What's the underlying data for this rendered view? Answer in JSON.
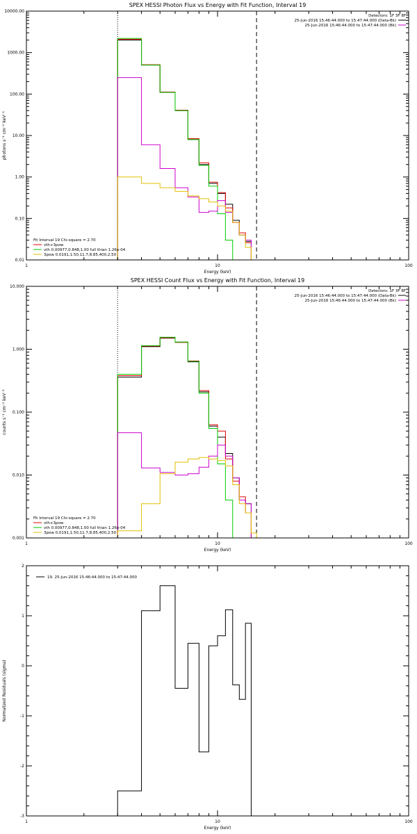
{
  "chart_data": [
    {
      "type": "line",
      "title": "SPEX HESSI Photon Flux vs Energy with Fit Function, Interval 19",
      "xlabel": "Energy (keV)",
      "ylabel": "photons s⁻¹ cm⁻² keV⁻¹",
      "xscale": "log",
      "yscale": "log",
      "xlim": [
        1,
        100
      ],
      "ylim": [
        0.01,
        10000
      ],
      "xticks": [
        {
          "v": 1,
          "label": "1"
        },
        {
          "v": 10,
          "label": "10"
        },
        {
          "v": 100,
          "label": "100"
        }
      ],
      "yticks": [
        {
          "v": 0.01,
          "label": "0.01"
        },
        {
          "v": 0.1,
          "label": "0.10"
        },
        {
          "v": 1,
          "label": "1.00"
        },
        {
          "v": 10,
          "label": "10.00"
        },
        {
          "v": 100,
          "label": "100.00"
        },
        {
          "v": 1000,
          "label": "1000.00"
        },
        {
          "v": 10000,
          "label": "10000.00"
        }
      ],
      "vlines": [
        {
          "x": 3.0,
          "style": "dotted"
        },
        {
          "x": 16.0,
          "style": "dashed"
        }
      ],
      "edges": [
        3.0,
        4.0,
        5.0,
        6.0,
        7.0,
        8.0,
        9.0,
        10.0,
        11.0,
        12.0,
        13.0,
        14.0,
        15.0,
        16.0,
        17.5
      ],
      "series": [
        {
          "color": "#000000",
          "values": [
            2000,
            500,
            110,
            40,
            8,
            2,
            0.7,
            0.4,
            0.22,
            0.09,
            0.04,
            0.028,
            null,
            null
          ]
        },
        {
          "color": "#e00000",
          "values": [
            2100,
            510,
            112,
            41,
            8.4,
            2.2,
            0.75,
            0.42,
            0.18,
            0.08,
            0.045,
            0.026,
            null,
            null
          ]
        },
        {
          "color": "#00cc00",
          "values": [
            2200,
            500,
            110,
            40,
            8,
            1.9,
            0.6,
            0.13,
            0.03,
            0.01,
            0.01,
            0.01,
            null,
            null
          ]
        },
        {
          "color": "#cc00cc",
          "values": [
            250,
            6,
            1.6,
            0.55,
            0.33,
            0.14,
            0.15,
            0.27,
            0.14,
            0.08,
            0.04,
            0.03,
            null,
            null
          ]
        },
        {
          "color": "#e0c000",
          "values": [
            1.0,
            0.7,
            0.55,
            0.45,
            0.35,
            0.3,
            0.25,
            0.2,
            0.15,
            0.08,
            0.04,
            0.02,
            0.01,
            null
          ]
        }
      ],
      "legend": {
        "placement": "bottom-left",
        "entries": [
          {
            "text": "Fit Interval 19   Chi-square = 2.70",
            "color": null
          },
          {
            "text": "vth+3pow",
            "color": "#e00000"
          },
          {
            "text": "vth 0.00977,0.848,1.00  full thian 1.26e-04",
            "color": "#00cc00"
          },
          {
            "text": "3pow 0.0191,1.50,11.7,8.85,400,2.50",
            "color": "#e0c000"
          }
        ]
      },
      "detector_text": {
        "lines": [
          {
            "text": "Detectors: 1F 3F 8F",
            "color": null
          },
          {
            "text": "25-Jun-2016 15:46:44.000 to 15:47:44.000 (Data-Bk)",
            "color": "#000000"
          },
          {
            "text": "25-Jun-2016 15:46:44.000 to 15:47:44.000 (Bk)",
            "color": "#cc00cc"
          }
        ]
      }
    },
    {
      "type": "line",
      "title": "SPEX HESSI Count Flux vs Energy with Fit Function, Interval 19",
      "xlabel": "Energy (keV)",
      "ylabel": "counts s⁻¹ cm⁻² keV⁻¹",
      "xscale": "log",
      "yscale": "log",
      "xlim": [
        1,
        100
      ],
      "ylim": [
        0.001,
        10
      ],
      "xticks": [
        {
          "v": 1,
          "label": "1"
        },
        {
          "v": 10,
          "label": "10"
        },
        {
          "v": 100,
          "label": "100"
        }
      ],
      "yticks": [
        {
          "v": 0.001,
          "label": "0.001"
        },
        {
          "v": 0.01,
          "label": "0.010"
        },
        {
          "v": 0.1,
          "label": "0.100"
        },
        {
          "v": 1,
          "label": "1.000"
        },
        {
          "v": 10,
          "label": "10.000"
        }
      ],
      "vlines": [
        {
          "x": 3.0,
          "style": "dotted"
        },
        {
          "x": 16.0,
          "style": "dashed"
        }
      ],
      "edges": [
        3.0,
        4.0,
        5.0,
        6.0,
        7.0,
        8.0,
        9.0,
        10.0,
        11.0,
        12.0,
        13.0,
        14.0,
        15.0,
        16.0,
        17.5
      ],
      "series": [
        {
          "color": "#000000",
          "values": [
            0.36,
            1.1,
            1.5,
            1.3,
            0.63,
            0.21,
            0.06,
            0.04,
            0.022,
            0.009,
            0.004,
            0.0035,
            null,
            null
          ]
        },
        {
          "color": "#e00000",
          "values": [
            0.38,
            1.12,
            1.52,
            1.28,
            0.65,
            0.22,
            0.063,
            0.05,
            0.018,
            0.008,
            0.0045,
            0.0025,
            null,
            null
          ]
        },
        {
          "color": "#00cc00",
          "values": [
            0.4,
            1.14,
            1.55,
            1.3,
            0.64,
            0.2,
            0.055,
            0.015,
            0.004,
            0.001,
            0.001,
            0.001,
            null,
            null
          ]
        },
        {
          "color": "#cc00cc",
          "values": [
            0.047,
            0.013,
            0.011,
            0.01,
            0.0105,
            0.0133,
            0.02,
            0.03,
            0.02,
            0.009,
            0.004,
            0.0035,
            null,
            null
          ]
        },
        {
          "color": "#e0c000",
          "values": [
            0.0013,
            0.0035,
            0.0105,
            0.016,
            0.018,
            0.019,
            0.018,
            0.017,
            0.014,
            0.007,
            0.0035,
            0.0025,
            0.0012,
            0.001
          ]
        }
      ],
      "legend": {
        "placement": "bottom-left",
        "entries": [
          {
            "text": "Fit Interval 19   Chi-square = 2.70",
            "color": null
          },
          {
            "text": "vth+3pow",
            "color": "#e00000"
          },
          {
            "text": "vth 0.00977,0.848,1.00  full thian 1.26e-04",
            "color": "#00cc00"
          },
          {
            "text": "3pow 0.0191,1.50,11.7,8.85,400,2.50",
            "color": "#e0c000"
          }
        ]
      },
      "detector_text": {
        "lines": [
          {
            "text": "Detectors: 1F 3F 8F",
            "color": null
          },
          {
            "text": "25-Jun-2016 15:46:44.000 to 15:47:44.000 (Data-Bk)",
            "color": "#000000"
          },
          {
            "text": "25-Jun-2016 15:46:44.000 to 15:47:44.000 (Bk)",
            "color": "#cc00cc"
          }
        ]
      }
    },
    {
      "type": "line",
      "title": "",
      "xlabel": "Energy (keV)",
      "ylabel": "Normalized Residuals (sigma)",
      "xscale": "log",
      "yscale": "linear",
      "xlim": [
        1,
        100
      ],
      "ylim": [
        -3,
        2
      ],
      "xticks": [
        {
          "v": 1,
          "label": "1"
        },
        {
          "v": 10,
          "label": "10"
        },
        {
          "v": 100,
          "label": "100"
        }
      ],
      "yticks": [
        {
          "v": -3,
          "label": "-3"
        },
        {
          "v": -2,
          "label": "-2"
        },
        {
          "v": -1,
          "label": "-1"
        },
        {
          "v": 0,
          "label": "0"
        },
        {
          "v": 1,
          "label": "1"
        },
        {
          "v": 2,
          "label": "2"
        }
      ],
      "vlines": [],
      "edges": [
        3.0,
        4.0,
        5.0,
        6.0,
        7.0,
        8.0,
        9.0,
        10.0,
        11.0,
        12.0,
        13.0,
        14.0,
        15.0,
        16.0
      ],
      "series": [
        {
          "color": "#000000",
          "values": [
            -2.5,
            1.1,
            1.6,
            -0.45,
            0.45,
            -1.72,
            0.4,
            0.6,
            1.12,
            -0.38,
            -0.67,
            0.85,
            -3.0
          ]
        }
      ],
      "legend": {
        "placement": "top-left",
        "entries": [
          {
            "text": "19. 25-Jun-2016 15:46:44.000 to 15:47:44.000",
            "color": "#000000"
          }
        ]
      },
      "detector_text": {
        "lines": []
      }
    }
  ]
}
